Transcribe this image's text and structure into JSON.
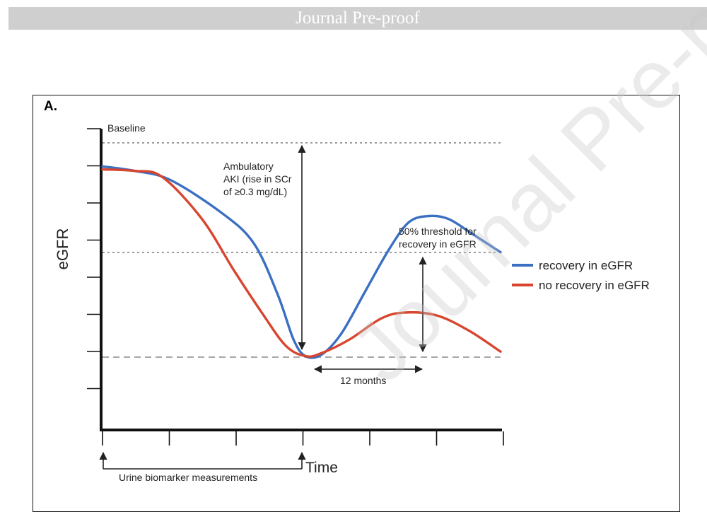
{
  "banner": {
    "text": "Journal Pre-proof"
  },
  "watermark": {
    "text": "Journal Pre-proof"
  },
  "panel": {
    "label": "A."
  },
  "chart_data": {
    "type": "line",
    "ylabel": "eGFR",
    "xlabel": "Time",
    "x_ticks": 6,
    "y_ticks": 8,
    "reference_lines": [
      {
        "name": "baseline",
        "label": "Baseline",
        "y": 0.87,
        "style": "dotted"
      },
      {
        "name": "threshold",
        "label": "50% threshold for recovery in eGFR",
        "y": 0.555,
        "style": "dotted"
      },
      {
        "name": "nadir",
        "label": "",
        "y": 0.225,
        "style": "dashed"
      }
    ],
    "series": [
      {
        "name": "recovery in eGFR",
        "color": "#3a6fc1",
        "points": [
          [
            0,
            0.875
          ],
          [
            0.08,
            0.86
          ],
          [
            0.17,
            0.83
          ],
          [
            0.3,
            0.72
          ],
          [
            0.38,
            0.62
          ],
          [
            0.44,
            0.45
          ],
          [
            0.48,
            0.3
          ],
          [
            0.51,
            0.245
          ],
          [
            0.55,
            0.25
          ],
          [
            0.6,
            0.32
          ],
          [
            0.66,
            0.46
          ],
          [
            0.72,
            0.6
          ],
          [
            0.77,
            0.69
          ],
          [
            0.82,
            0.71
          ],
          [
            0.87,
            0.7
          ],
          [
            0.93,
            0.65
          ],
          [
            1.0,
            0.59
          ]
        ]
      },
      {
        "name": "no recovery in eGFR",
        "color": "#d8452e",
        "points": [
          [
            0,
            0.865
          ],
          [
            0.08,
            0.86
          ],
          [
            0.15,
            0.84
          ],
          [
            0.25,
            0.7
          ],
          [
            0.33,
            0.53
          ],
          [
            0.4,
            0.39
          ],
          [
            0.46,
            0.28
          ],
          [
            0.51,
            0.245
          ],
          [
            0.55,
            0.255
          ],
          [
            0.62,
            0.3
          ],
          [
            0.7,
            0.37
          ],
          [
            0.76,
            0.39
          ],
          [
            0.84,
            0.38
          ],
          [
            0.92,
            0.33
          ],
          [
            1.0,
            0.26
          ]
        ]
      }
    ],
    "annotations": {
      "aki": [
        "Ambulatory",
        "AKI (rise in SCr",
        "of ≥0.3 mg/dL)"
      ],
      "threshold": [
        "50% threshold for",
        "recovery in eGFR"
      ],
      "months": "12 months",
      "urine": "Urine biomarker measurements"
    },
    "legend_position": "right"
  }
}
